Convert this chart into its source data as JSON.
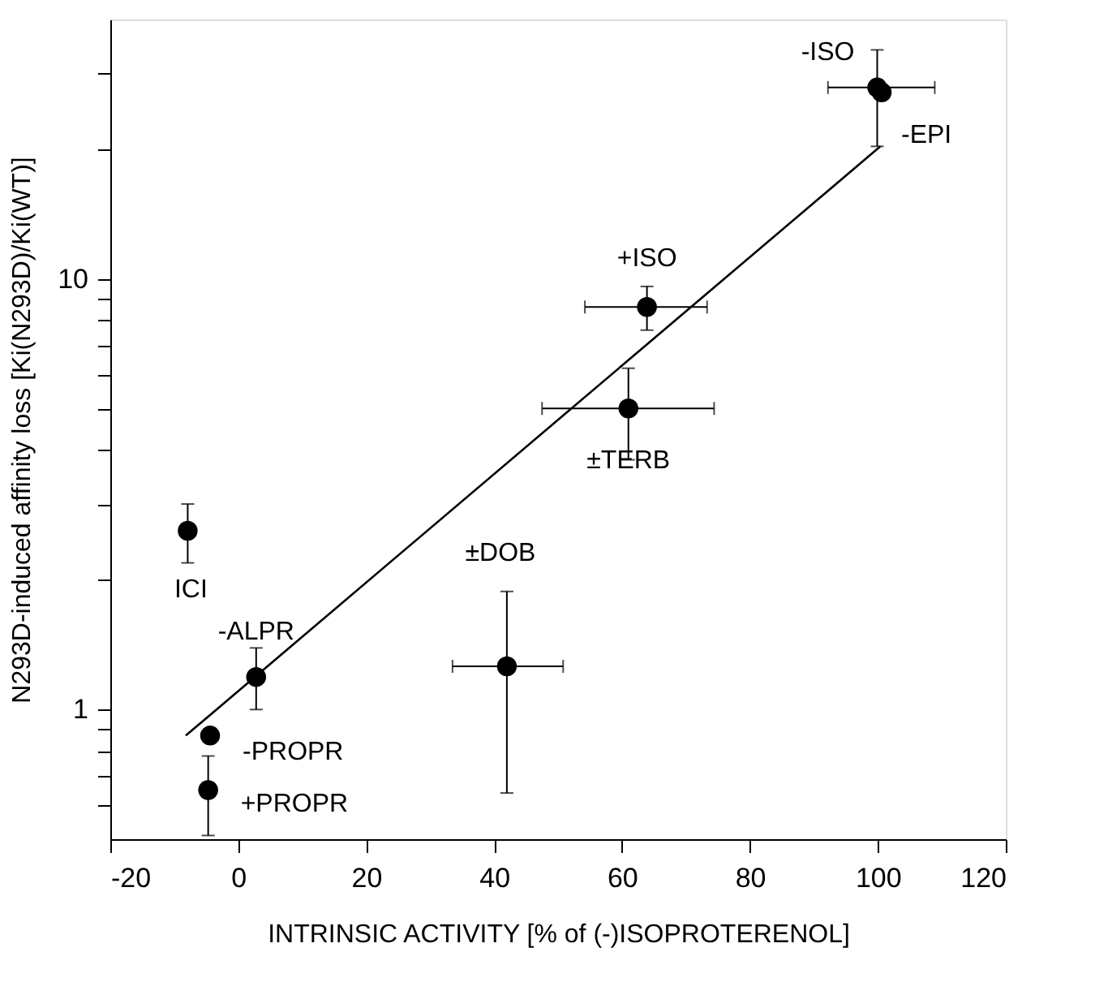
{
  "chart_data": {
    "type": "scatter",
    "xlabel": "INTRINSIC ACTIVITY [% of (-)ISOPROTERENOL]",
    "ylabel": "N293D-induced affinity loss  [Ki(N293D)/Ki(WT)]",
    "xlim": [
      -20,
      120
    ],
    "xticks": [
      -20,
      0,
      20,
      40,
      60,
      80,
      100,
      120
    ],
    "ylim": [
      0.5,
      40
    ],
    "log": "y",
    "yticks": [
      {
        "value": 0.6,
        "label": null
      },
      {
        "value": 0.7,
        "label": null
      },
      {
        "value": 0.8,
        "label": null
      },
      {
        "value": 0.9,
        "label": null
      },
      1,
      {
        "value": 2,
        "label": null
      },
      {
        "value": 3,
        "label": null
      },
      {
        "value": 4,
        "label": null
      },
      {
        "value": 5,
        "label": null
      },
      {
        "value": 6,
        "label": null
      },
      {
        "value": 7,
        "label": null
      },
      {
        "value": 8,
        "label": null
      },
      {
        "value": 9,
        "label": null
      },
      10,
      {
        "value": 20,
        "label": null
      },
      {
        "value": 30,
        "label": null
      }
    ],
    "grid": false,
    "marker": "circle",
    "series": [
      {
        "color": "#000000",
        "x": [
          99.9,
          100.6,
          63.9,
          61.0,
          -7.9,
          2.8,
          42.0,
          -4.4,
          -4.7
        ],
        "values": [
          27.8,
          27.1,
          8.6,
          5.0,
          2.6,
          1.19,
          1.26,
          0.87,
          0.65
        ],
        "errors": [
          [
            20.3,
            34
          ],
          null,
          [
            7.6,
            9.6
          ],
          [
            3.8,
            6.2
          ],
          [
            2.19,
            3.0
          ],
          [
            1.0,
            1.39
          ],
          [
            0.64,
            1.88
          ],
          null,
          [
            0.51,
            0.78
          ]
        ],
        "xerrors": [
          [
            92.2,
            108.9
          ],
          null,
          [
            54.2,
            73.3
          ],
          [
            47.5,
            74.4
          ],
          null,
          null,
          [
            33.5,
            50.8
          ],
          null,
          null
        ]
      },
      {
        "type": "line",
        "color": "#000000",
        "line_style": "solid",
        "marker": "none",
        "x": [
          -8.2,
          100.4
        ],
        "values": [
          0.87,
          20.3
        ]
      }
    ],
    "annotations": [
      {
        "text": "-ISO",
        "x": 99.9,
        "y": 27.8
      },
      {
        "text": "-EPI",
        "x": 100.6,
        "y": 27.1
      },
      {
        "text": "+ISO",
        "x": 63.9,
        "y": 8.6
      },
      {
        "text": "±TERB",
        "x": 61.0,
        "y": 5.0
      },
      {
        "text": "ICI",
        "x": -7.9,
        "y": 2.6
      },
      {
        "text": "-ALPR",
        "x": 2.8,
        "y": 1.19
      },
      {
        "text": "±DOB",
        "x": 42.0,
        "y": 1.88
      },
      {
        "text": "-PROPR",
        "x": -4.4,
        "y": 0.87
      },
      {
        "text": "+PROPR",
        "x": -4.7,
        "y": 0.65
      }
    ]
  }
}
